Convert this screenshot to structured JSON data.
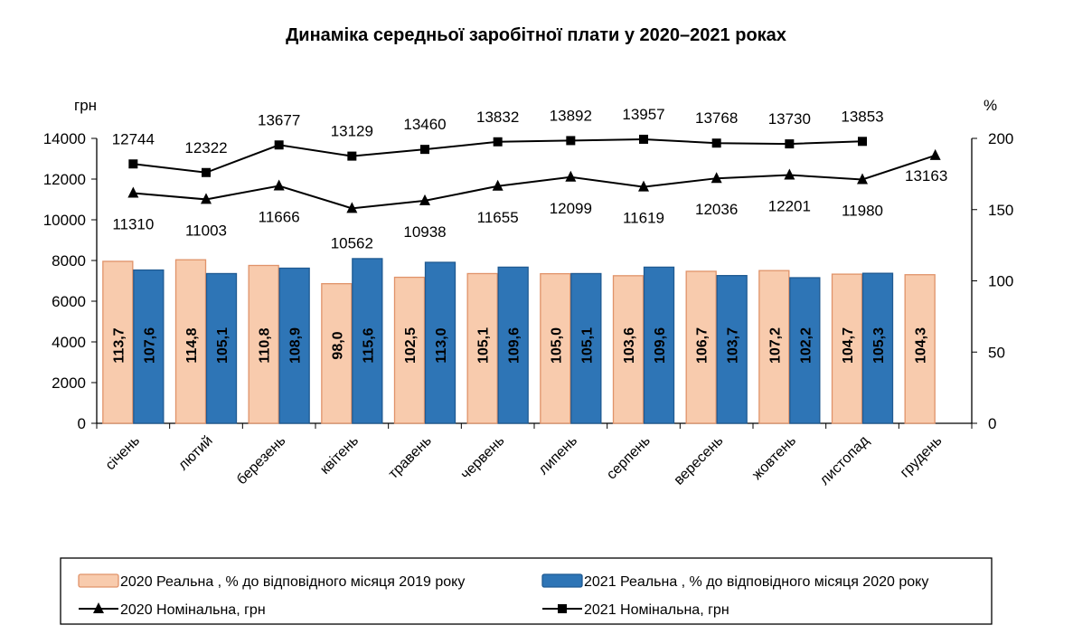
{
  "chart_data": {
    "type": "bar+line",
    "title": "Динаміка середньої заробітної плати у 2020–2021 роках",
    "ylabel_left": "грн",
    "ylabel_right": "%",
    "ylim_left": [
      0,
      14000
    ],
    "ylim_right": [
      0,
      200
    ],
    "yticks_left": [
      0,
      2000,
      4000,
      6000,
      8000,
      10000,
      12000,
      14000
    ],
    "yticks_right": [
      0,
      50,
      100,
      150,
      200
    ],
    "categories": [
      "січень",
      "лютий",
      "березень",
      "квітень",
      "травень",
      "червень",
      "липень",
      "серпень",
      "вересень",
      "жовтень",
      "листопад",
      "грудень"
    ],
    "bar_series": [
      {
        "name": "2020 Реальна , % до відповідного місяця 2019 року",
        "axis": "right",
        "color": "#f8cbad",
        "stroke": "#e0936a",
        "values": [
          113.7,
          114.8,
          110.8,
          98.0,
          102.5,
          105.1,
          105.0,
          103.6,
          106.7,
          107.2,
          104.7,
          104.3
        ],
        "labels": [
          "113,7",
          "114,8",
          "110,8",
          "98,0",
          "102,5",
          "105,1",
          "105,0",
          "103,6",
          "106,7",
          "107,2",
          "104,7",
          "104,3"
        ]
      },
      {
        "name": "2021 Реальна , % до відповідного місяця 2020 року",
        "axis": "right",
        "color": "#2e75b6",
        "stroke": "#1f5a92",
        "values": [
          107.6,
          105.1,
          108.9,
          115.6,
          113.0,
          109.6,
          105.1,
          109.6,
          103.7,
          102.2,
          105.3,
          null
        ],
        "labels": [
          "107,6",
          "105,1",
          "108,9",
          "115,6",
          "113,0",
          "109,6",
          "105,1",
          "109,6",
          "103,7",
          "102,2",
          "105,3",
          null
        ]
      }
    ],
    "line_series": [
      {
        "name": "2020 Номінальна, грн",
        "axis": "left",
        "marker": "triangle",
        "values": [
          11310,
          11003,
          11666,
          10562,
          10938,
          11655,
          12099,
          11619,
          12036,
          12201,
          11980,
          13163
        ],
        "labels": [
          "11310",
          "11003",
          "11666",
          "10562",
          "10938",
          "11655",
          "12099",
          "11619",
          "12036",
          "12201",
          "11980",
          "13163"
        ]
      },
      {
        "name": "2021 Номінальна, грн",
        "axis": "left",
        "marker": "square",
        "values": [
          12744,
          12322,
          13677,
          13129,
          13460,
          13832,
          13892,
          13957,
          13768,
          13730,
          13853,
          null
        ],
        "labels": [
          "12744",
          "12322",
          "13677",
          "13129",
          "13460",
          "13832",
          "13892",
          "13957",
          "13768",
          "13730",
          "13853",
          null
        ]
      }
    ],
    "legend_position": "bottom"
  }
}
